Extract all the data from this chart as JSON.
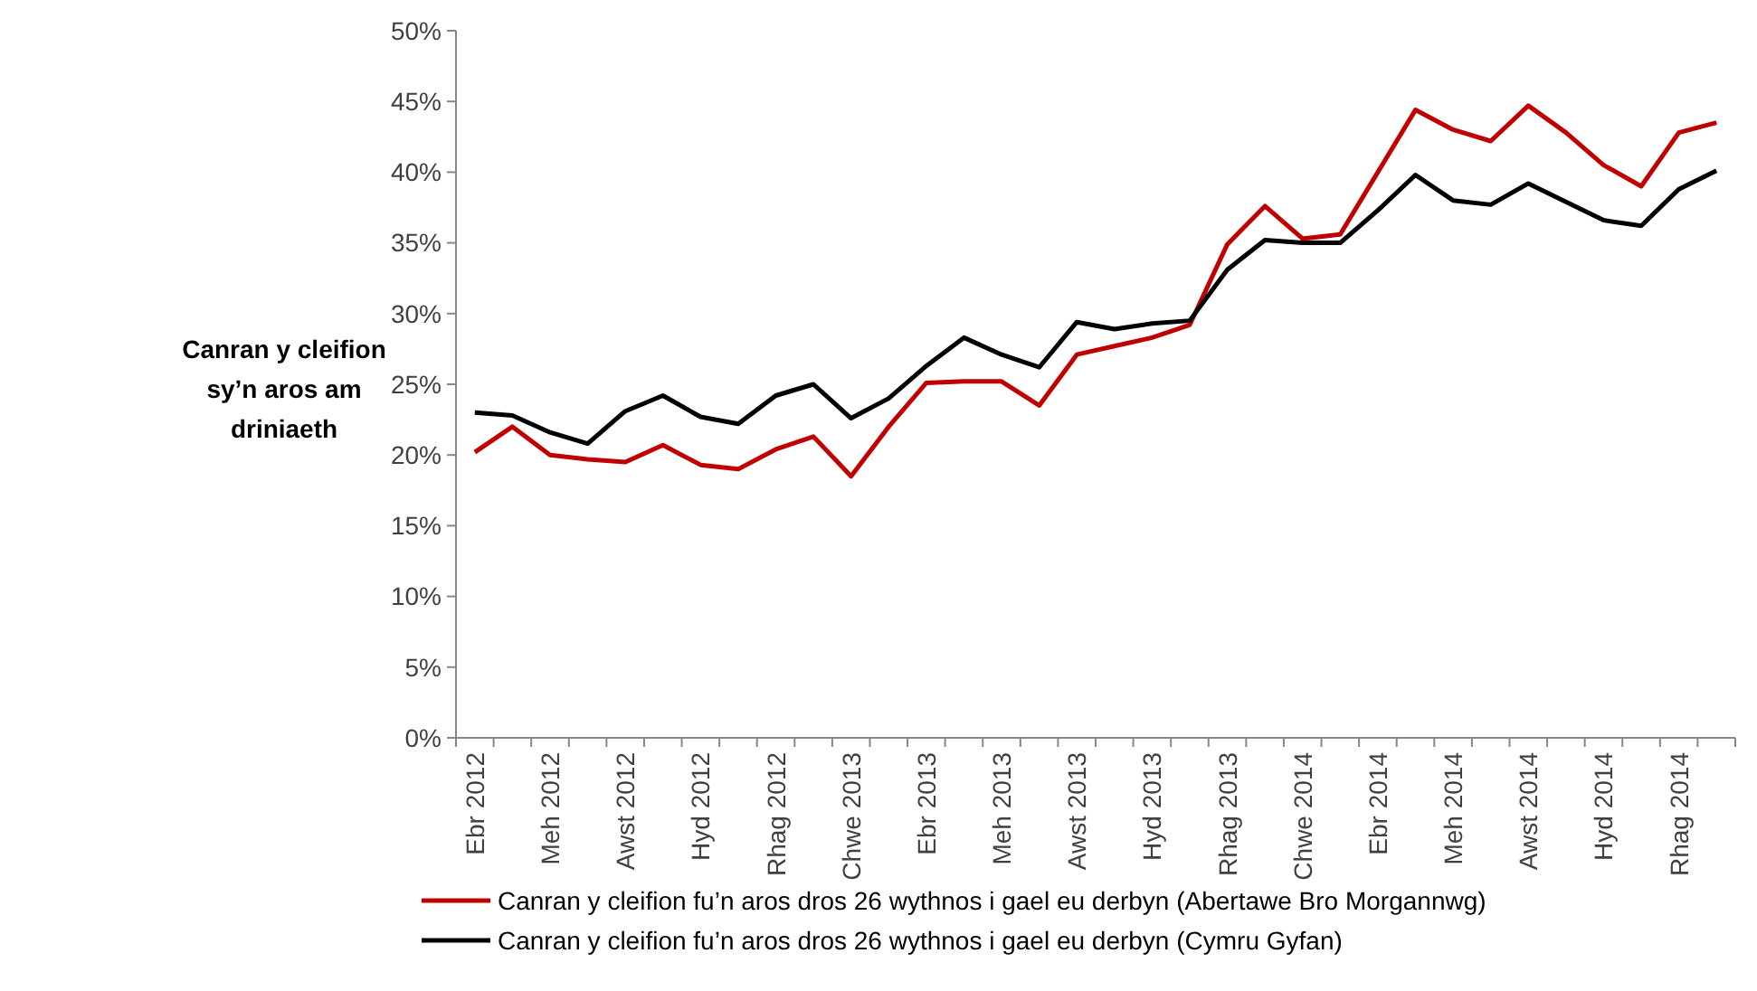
{
  "chart_data": {
    "type": "line",
    "ylabel": "Canran y cleifion sy’n aros am driniaeth",
    "categories": [
      "Ebr 2012",
      null,
      "Meh 2012",
      null,
      "Awst 2012",
      null,
      "Hyd 2012",
      null,
      "Rhag 2012",
      null,
      "Chwe 2013",
      null,
      "Ebr 2013",
      null,
      "Meh 2013",
      null,
      "Awst 2013",
      null,
      "Hyd 2013",
      null,
      "Rhag 2013",
      null,
      "Chwe 2014",
      null,
      "Ebr 2014",
      null,
      "Meh 2014",
      null,
      "Awst 2014",
      null,
      "Hyd 2014",
      null,
      "Rhag 2014",
      null
    ],
    "series": [
      {
        "name": "Canran y cleifion fu’n aros dros 26 wythnos i gael eu derbyn (Abertawe Bro Morgannwg)",
        "color": "#c00000",
        "values": [
          20.2,
          22.0,
          20.0,
          19.7,
          19.5,
          20.7,
          19.3,
          19.0,
          20.4,
          21.3,
          18.5,
          22.0,
          25.1,
          25.2,
          25.2,
          23.5,
          27.1,
          27.7,
          28.3,
          29.2,
          34.9,
          37.6,
          35.3,
          35.6,
          40.0,
          44.4,
          43.0,
          42.2,
          44.7,
          42.8,
          40.5,
          39.0,
          42.8,
          43.5
        ]
      },
      {
        "name": "Canran y cleifion fu’n aros dros 26 wythnos i gael eu derbyn (Cymru Gyfan)",
        "color": "#000000",
        "values": [
          23.0,
          22.8,
          21.6,
          20.8,
          23.1,
          24.2,
          22.7,
          22.2,
          24.2,
          25.0,
          22.6,
          24.0,
          26.3,
          28.3,
          27.1,
          26.2,
          29.4,
          28.9,
          29.3,
          29.5,
          33.1,
          35.2,
          35.0,
          35.0,
          37.3,
          39.8,
          38.0,
          37.7,
          39.2,
          37.9,
          36.6,
          36.2,
          38.8,
          40.1
        ]
      }
    ],
    "ylim": [
      0,
      50
    ],
    "yticks": [
      {
        "value": 0,
        "label": "0%"
      },
      {
        "value": 5,
        "label": "5%"
      },
      {
        "value": 10,
        "label": "10%"
      },
      {
        "value": 15,
        "label": "15%"
      },
      {
        "value": 20,
        "label": "20%"
      },
      {
        "value": 25,
        "label": "25%"
      },
      {
        "value": 30,
        "label": "30%"
      },
      {
        "value": 35,
        "label": "35%"
      },
      {
        "value": 40,
        "label": "40%"
      },
      {
        "value": 45,
        "label": "45%"
      },
      {
        "value": 50,
        "label": "50%"
      }
    ],
    "grid": false,
    "legend": "bottom",
    "marker": "none",
    "line_style": "solid"
  }
}
